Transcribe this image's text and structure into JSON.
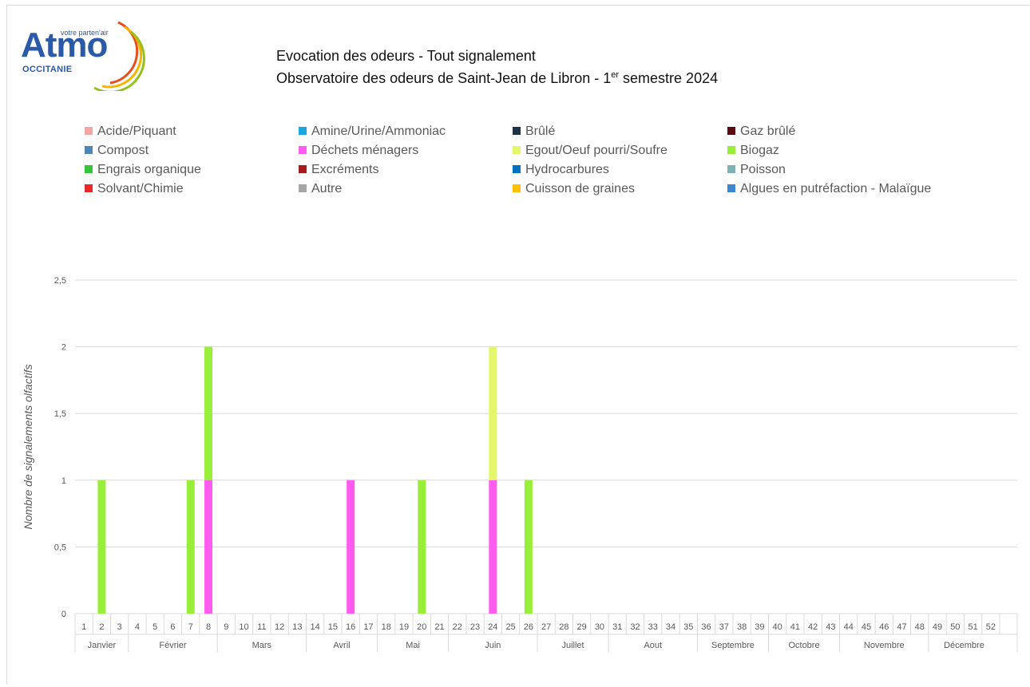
{
  "logo": {
    "word": "Atmo",
    "tagline": "votre parten'air",
    "region": "OCCITANIE",
    "colors": {
      "blue": "#2a5aa8",
      "arc1": "#e84e1b",
      "arc2": "#f7b500",
      "arc3": "#95c11f"
    }
  },
  "header": {
    "title": "Evocation des odeurs - Tout signalement",
    "subtitle_prefix": "Observatoire des odeurs de Saint-Jean de Libron -  1",
    "subtitle_sup": "er",
    "subtitle_suffix": " semestre 2024"
  },
  "legend": [
    {
      "label": "Acide/Piquant",
      "color": "#f4a6a6"
    },
    {
      "label": "Amine/Urine/Ammoniac",
      "color": "#1aa7e0"
    },
    {
      "label": "Brûlé",
      "color": "#1f3347"
    },
    {
      "label": "Gaz brûlé",
      "color": "#5c0a14"
    },
    {
      "label": "Compost",
      "color": "#4f86b8"
    },
    {
      "label": "Déchets ménagers",
      "color": "#ff5bf0"
    },
    {
      "label": "Egout/Oeuf pourri/Soufre",
      "color": "#e4f76a"
    },
    {
      "label": "Biogaz",
      "color": "#99ee3a"
    },
    {
      "label": "Engrais organique",
      "color": "#35c43a"
    },
    {
      "label": "Excréments",
      "color": "#a51c1c"
    },
    {
      "label": "Hydrocarbures",
      "color": "#0070c0"
    },
    {
      "label": "Poisson",
      "color": "#7fb3b3"
    },
    {
      "label": "Solvant/Chimie",
      "color": "#e82929"
    },
    {
      "label": "Autre",
      "color": "#a6a6a6"
    },
    {
      "label": "Cuisson de graines",
      "color": "#ffc000"
    },
    {
      "label": "Algues en putréfaction - Malaïgue",
      "color": "#3c87cf"
    }
  ],
  "chart_data": {
    "type": "bar",
    "stacked": true,
    "ylabel": "Nombre de signalements olfactifs",
    "ylim": [
      0,
      2.5
    ],
    "yticks": [
      "0",
      "0,5",
      "1",
      "1,5",
      "2",
      "2,5"
    ],
    "grid": true,
    "categories": [
      "1",
      "2",
      "3",
      "4",
      "5",
      "6",
      "7",
      "8",
      "9",
      "10",
      "11",
      "12",
      "13",
      "14",
      "15",
      "16",
      "17",
      "18",
      "19",
      "20",
      "21",
      "22",
      "23",
      "24",
      "25",
      "26",
      "27",
      "28",
      "29",
      "30",
      "31",
      "32",
      "33",
      "34",
      "35",
      "36",
      "37",
      "38",
      "39",
      "40",
      "41",
      "42",
      "43",
      "44",
      "45",
      "46",
      "47",
      "48",
      "49",
      "50",
      "51",
      "52"
    ],
    "months": [
      {
        "label": "Janvier",
        "start": 1,
        "end": 3
      },
      {
        "label": "Février",
        "start": 4,
        "end": 8
      },
      {
        "label": "Mars",
        "start": 9,
        "end": 13
      },
      {
        "label": "Avril",
        "start": 14,
        "end": 17
      },
      {
        "label": "Mai",
        "start": 18,
        "end": 21
      },
      {
        "label": "Juin",
        "start": 22,
        "end": 26
      },
      {
        "label": "Juillet",
        "start": 27,
        "end": 30
      },
      {
        "label": "Aout",
        "start": 31,
        "end": 35
      },
      {
        "label": "Septembre",
        "start": 36,
        "end": 39
      },
      {
        "label": "Octobre",
        "start": 40,
        "end": 43
      },
      {
        "label": "Novembre",
        "start": 44,
        "end": 48
      },
      {
        "label": "Décembre",
        "start": 49,
        "end": 52
      }
    ],
    "series": [
      {
        "name": "Déchets ménagers",
        "color": "#ff5bf0",
        "points": [
          {
            "week": 8,
            "value": 1
          },
          {
            "week": 16,
            "value": 1
          },
          {
            "week": 24,
            "value": 1
          }
        ]
      },
      {
        "name": "Biogaz",
        "color": "#99ee3a",
        "points": [
          {
            "week": 2,
            "value": 1
          },
          {
            "week": 7,
            "value": 1
          },
          {
            "week": 8,
            "value": 1
          },
          {
            "week": 20,
            "value": 1
          },
          {
            "week": 26,
            "value": 1
          }
        ]
      },
      {
        "name": "Egout/Oeuf pourri/Soufre",
        "color": "#e4f76a",
        "points": [
          {
            "week": 24,
            "value": 1
          }
        ]
      }
    ]
  }
}
